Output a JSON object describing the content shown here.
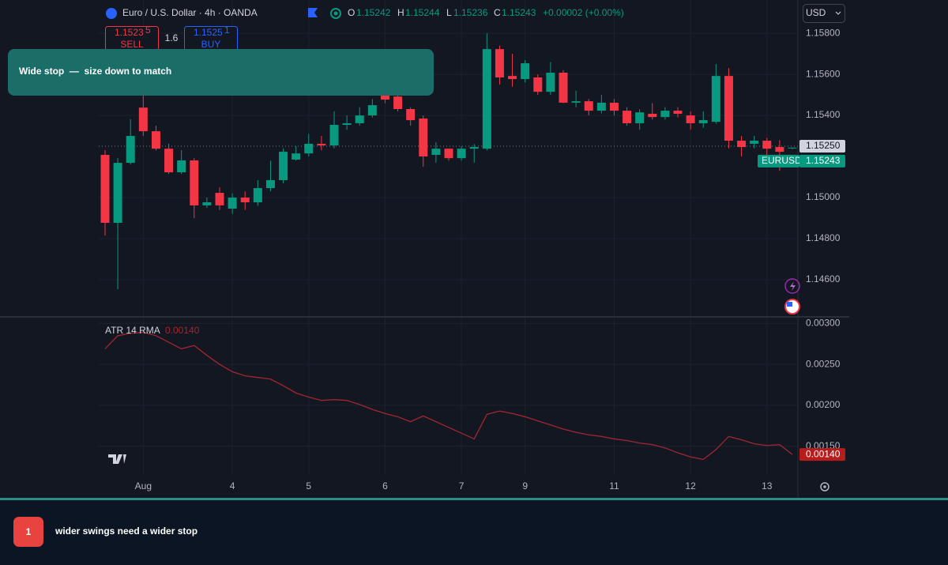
{
  "header": {
    "symbol": "Euro / U.S. Dollar · 4h · OANDA",
    "ohlc_letters": [
      "O",
      "H",
      "L",
      "C"
    ],
    "change": "+0.00002 (+0.00%)",
    "currency": "USD"
  },
  "order_panel": {
    "sell_price": "1.1523",
    "sell_pip": "5",
    "sell": "SELL",
    "spread": "1.6",
    "buy_price": "1.1525",
    "buy_pip": "1",
    "buy": "BUY"
  },
  "banner": "Wide stop  —  size down to match",
  "caption": {
    "number": "1",
    "text": "wider swings need a wider stop"
  },
  "chart_data": [
    {
      "type": "candlestick",
      "symbol": "EURUSD",
      "up_color": "#089981",
      "down_color": "#f23645",
      "grid": true,
      "categories": [
        null,
        null,
        null,
        "Aug",
        null,
        null,
        null,
        null,
        null,
        null,
        "4",
        null,
        null,
        null,
        null,
        null,
        "5",
        null,
        null,
        null,
        null,
        null,
        "6",
        null,
        null,
        null,
        null,
        null,
        "7",
        null,
        null,
        null,
        null,
        "9",
        null,
        null,
        null,
        null,
        null,
        null,
        "11",
        null,
        null,
        null,
        null,
        null,
        "12",
        null,
        null,
        null,
        null,
        null,
        "13",
        null,
        null
      ],
      "open": [
        1.15208,
        1.14877,
        1.15169,
        1.15438,
        1.15323,
        1.15238,
        1.15123,
        1.15181,
        1.14962,
        1.15023,
        1.14946,
        1.15,
        1.14977,
        1.15046,
        1.15085,
        1.15185,
        1.15215,
        1.15262,
        1.15254,
        1.15354,
        1.15362,
        1.154,
        1.15508,
        1.15492,
        1.15431,
        1.15385,
        1.15208,
        1.15238,
        1.15192,
        1.15238,
        1.15238,
        1.15723,
        1.15592,
        1.15577,
        1.15585,
        1.15515,
        1.15608,
        1.15462,
        1.15469,
        1.15423,
        1.15462,
        1.15423,
        1.15362,
        1.15408,
        1.15392,
        1.15423,
        1.154,
        1.15362,
        1.15369,
        1.15592,
        1.15277,
        1.15262,
        1.15277,
        1.15246,
        1.15242
      ],
      "high": [
        1.15231,
        1.15192,
        1.15381,
        1.155,
        1.1535,
        1.15262,
        1.15231,
        1.15192,
        1.15,
        1.1505,
        1.1502,
        1.1503,
        1.15085,
        1.1518,
        1.1524,
        1.1525,
        1.1531,
        1.153,
        1.1542,
        1.154,
        1.1544,
        1.1548,
        1.1554,
        1.1552,
        1.1544,
        1.154,
        1.1527,
        1.1524,
        1.1525,
        1.1526,
        1.158,
        1.1574,
        1.157,
        1.1567,
        1.156,
        1.1566,
        1.1562,
        1.1552,
        1.1548,
        1.155,
        1.1548,
        1.1544,
        1.1543,
        1.1546,
        1.1544,
        1.1544,
        1.1542,
        1.1542,
        1.1565,
        1.1563,
        1.153,
        1.153,
        1.1529,
        1.1528,
        1.15244
      ],
      "low": [
        1.14815,
        1.14554,
        1.15162,
        1.153,
        1.1523,
        1.15115,
        1.15115,
        1.149,
        1.1495,
        1.1494,
        1.1492,
        1.1494,
        1.1496,
        1.1503,
        1.1507,
        1.1518,
        1.152,
        1.1523,
        1.1524,
        1.1533,
        1.1535,
        1.1539,
        1.1546,
        1.1542,
        1.1535,
        1.1515,
        1.1517,
        1.1518,
        1.1518,
        1.1517,
        1.1523,
        1.1555,
        1.1554,
        1.1556,
        1.155,
        1.155,
        1.1546,
        1.1544,
        1.154,
        1.1541,
        1.154,
        1.1535,
        1.1533,
        1.1538,
        1.1538,
        1.1539,
        1.1533,
        1.1534,
        1.1536,
        1.1524,
        1.152,
        1.1524,
        1.152,
        1.1513,
        1.15236
      ],
      "close": [
        1.14877,
        1.15169,
        1.153,
        1.15323,
        1.15238,
        1.15123,
        1.15181,
        1.14962,
        1.14977,
        1.14962,
        1.15,
        1.14977,
        1.15046,
        1.15085,
        1.15223,
        1.15215,
        1.15262,
        1.15254,
        1.15354,
        1.15362,
        1.154,
        1.1545,
        1.15477,
        1.15431,
        1.15377,
        1.152,
        1.15238,
        1.15192,
        1.15238,
        1.15246,
        1.15723,
        1.15585,
        1.15577,
        1.15654,
        1.15515,
        1.15608,
        1.15462,
        1.15469,
        1.15423,
        1.15462,
        1.15423,
        1.15362,
        1.15415,
        1.15392,
        1.15423,
        1.15408,
        1.15362,
        1.15377,
        1.15592,
        1.15277,
        1.15246,
        1.15277,
        1.15238,
        1.15223,
        1.15243
      ],
      "ylim": [
        1.14423,
        1.15962
      ],
      "yticks": [
        {
          "value": 1.158,
          "label": "1.15800"
        },
        {
          "value": 1.156,
          "label": "1.15600"
        },
        {
          "value": 1.154,
          "label": "1.15400"
        },
        {
          "value": 1.15,
          "label": "1.15000"
        },
        {
          "value": 1.148,
          "label": "1.14800"
        },
        {
          "value": 1.146,
          "label": "1.14600"
        }
      ],
      "price_line": {
        "value": 1.1525,
        "label": "1.15250"
      }
    },
    {
      "type": "line",
      "title": "ATR 14 RMA",
      "color": "#a3262f",
      "grid": true,
      "values": [
        0.00269,
        0.00285,
        0.00288,
        0.00289,
        0.00285,
        0.00277,
        0.00269,
        0.00273,
        0.00261,
        0.0025,
        0.00241,
        0.00236,
        0.00234,
        0.00232,
        0.00224,
        0.00215,
        0.0021,
        0.00206,
        0.00207,
        0.00206,
        0.00201,
        0.00195,
        0.0019,
        0.00186,
        0.0018,
        0.00187,
        0.0018,
        0.00173,
        0.00166,
        0.00159,
        0.00189,
        0.00193,
        0.0019,
        0.00186,
        0.00181,
        0.00176,
        0.00171,
        0.00167,
        0.00164,
        0.00162,
        0.00159,
        0.00157,
        0.00154,
        0.00152,
        0.00148,
        0.00142,
        0.00137,
        0.00134,
        0.00146,
        0.00162,
        0.00158,
        0.00153,
        0.00151,
        0.00152,
        0.0014
      ],
      "ylim": [
        0.00116,
        0.00307
      ],
      "yticks": [
        {
          "value": 0.003,
          "label": "0.00300"
        },
        {
          "value": 0.0025,
          "label": "0.00250"
        },
        {
          "value": 0.002,
          "label": "0.00200"
        },
        {
          "value": 0.0015,
          "label": "0.00150"
        }
      ],
      "last_label": {
        "value": 0.0014,
        "label": "0.00140"
      }
    }
  ]
}
